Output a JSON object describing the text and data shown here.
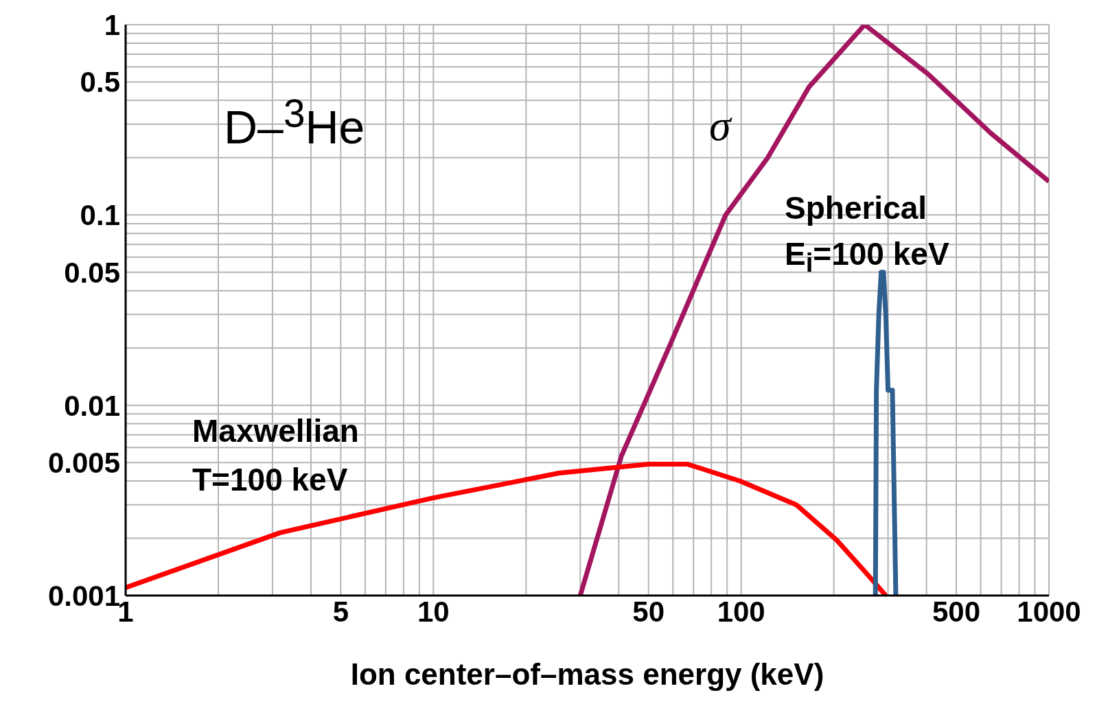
{
  "chart_data": {
    "type": "line",
    "xlabel": "Ion center–of–mass energy (keV)",
    "log": "xy",
    "grid": true,
    "xlim": [
      1,
      1000
    ],
    "xticks": [
      1,
      5,
      10,
      50,
      100,
      500,
      1000
    ],
    "ylim": [
      0.001,
      1
    ],
    "yticks": [
      0.001,
      0.005,
      0.01,
      0.05,
      0.1,
      0.5,
      1
    ],
    "annotations": [
      "D–$^{3}$He"
    ],
    "series": [
      {
        "name": "σ",
        "color": "#a3155f",
        "x": [
          30,
          40.8,
          58.9,
          89,
          122,
          166,
          252,
          405,
          646,
          1000
        ],
        "values": [
          0.001,
          0.0054,
          0.021,
          0.1,
          0.2,
          0.47,
          1,
          0.55,
          0.27,
          0.15
        ]
      },
      {
        "name": "Maxwellian T=100 keV",
        "color": "#ff0000",
        "x": [
          1,
          3.18,
          10,
          25.6,
          50,
          67,
          99,
          151,
          204,
          252,
          295
        ],
        "values": [
          0.0011,
          0.00214,
          0.00326,
          0.0044,
          0.0049,
          0.0049,
          0.004,
          0.003,
          0.00196,
          0.00134,
          0.001
        ]
      },
      {
        "name": "Spherical E$_{i}$=100 keV",
        "color": "#2e5f8f",
        "x": [
          273,
          275,
          280,
          285,
          290,
          295,
          300,
          310,
          318
        ],
        "values": [
          0.001,
          0.012,
          0.03,
          0.05,
          0.05,
          0.03,
          0.012,
          0.012,
          0.001
        ]
      }
    ]
  }
}
